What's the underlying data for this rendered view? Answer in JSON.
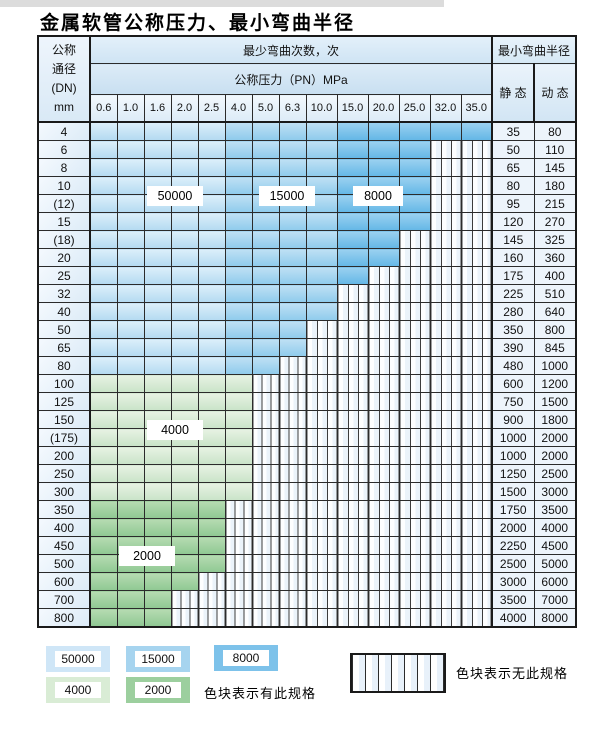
{
  "title": "金属软管公称压力、最小弯曲半径",
  "table": {
    "corner_lines": [
      "公称",
      "通径",
      "(DN)",
      "mm"
    ],
    "bend_cycles_header": "最少弯曲次数，次",
    "pressure_header": "公称压力（PN）MPa",
    "radius_header": "最小弯曲半径",
    "static_header": "静 态",
    "dynamic_header": "动 态",
    "pressures": [
      "0.6",
      "1.0",
      "1.6",
      "2.0",
      "2.5",
      "4.0",
      "5.0",
      "6.3",
      "10.0",
      "15.0",
      "20.0",
      "25.0",
      "32.0",
      "35.0"
    ],
    "blue_zones": [
      {
        "cycles": "50000",
        "from": 0,
        "to": 4
      },
      {
        "cycles": "15000",
        "from": 5,
        "to": 8
      },
      {
        "cycles": "8000",
        "from": 9,
        "to": 13
      }
    ],
    "rows": [
      {
        "dn": "4",
        "group": "blue",
        "colored_cols": 14,
        "static": "35",
        "dynamic": "80"
      },
      {
        "dn": "6",
        "group": "blue",
        "colored_cols": 12,
        "static": "50",
        "dynamic": "110"
      },
      {
        "dn": "8",
        "group": "blue",
        "colored_cols": 12,
        "static": "65",
        "dynamic": "145"
      },
      {
        "dn": "10",
        "group": "blue",
        "colored_cols": 12,
        "static": "80",
        "dynamic": "180"
      },
      {
        "dn": "(12)",
        "group": "blue",
        "colored_cols": 12,
        "static": "95",
        "dynamic": "215"
      },
      {
        "dn": "15",
        "group": "blue",
        "colored_cols": 12,
        "static": "120",
        "dynamic": "270"
      },
      {
        "dn": "(18)",
        "group": "blue",
        "colored_cols": 11,
        "static": "145",
        "dynamic": "325"
      },
      {
        "dn": "20",
        "group": "blue",
        "colored_cols": 11,
        "static": "160",
        "dynamic": "360"
      },
      {
        "dn": "25",
        "group": "blue",
        "colored_cols": 10,
        "static": "175",
        "dynamic": "400"
      },
      {
        "dn": "32",
        "group": "blue",
        "colored_cols": 9,
        "static": "225",
        "dynamic": "510"
      },
      {
        "dn": "40",
        "group": "blue",
        "colored_cols": 9,
        "static": "280",
        "dynamic": "640"
      },
      {
        "dn": "50",
        "group": "blue",
        "colored_cols": 8,
        "static": "350",
        "dynamic": "800"
      },
      {
        "dn": "65",
        "group": "blue",
        "colored_cols": 8,
        "static": "390",
        "dynamic": "845"
      },
      {
        "dn": "80",
        "group": "blue",
        "colored_cols": 7,
        "static": "480",
        "dynamic": "1000"
      },
      {
        "dn": "100",
        "group": "g4000",
        "colored_cols": 6,
        "static": "600",
        "dynamic": "1200"
      },
      {
        "dn": "125",
        "group": "g4000",
        "colored_cols": 6,
        "static": "750",
        "dynamic": "1500"
      },
      {
        "dn": "150",
        "group": "g4000",
        "colored_cols": 6,
        "static": "900",
        "dynamic": "1800"
      },
      {
        "dn": "(175)",
        "group": "g4000",
        "colored_cols": 6,
        "static": "1000",
        "dynamic": "2000"
      },
      {
        "dn": "200",
        "group": "g4000",
        "colored_cols": 6,
        "static": "1000",
        "dynamic": "2000"
      },
      {
        "dn": "250",
        "group": "g4000",
        "colored_cols": 6,
        "static": "1250",
        "dynamic": "2500"
      },
      {
        "dn": "300",
        "group": "g4000",
        "colored_cols": 6,
        "static": "1500",
        "dynamic": "3000"
      },
      {
        "dn": "350",
        "group": "g2000",
        "colored_cols": 5,
        "static": "1750",
        "dynamic": "3500"
      },
      {
        "dn": "400",
        "group": "g2000",
        "colored_cols": 5,
        "static": "2000",
        "dynamic": "4000"
      },
      {
        "dn": "450",
        "group": "g2000",
        "colored_cols": 5,
        "static": "2250",
        "dynamic": "4500"
      },
      {
        "dn": "500",
        "group": "g2000",
        "colored_cols": 5,
        "static": "2500",
        "dynamic": "5000"
      },
      {
        "dn": "600",
        "group": "g2000",
        "colored_cols": 4,
        "static": "3000",
        "dynamic": "6000"
      },
      {
        "dn": "700",
        "group": "g2000",
        "colored_cols": 3,
        "static": "3500",
        "dynamic": "7000"
      },
      {
        "dn": "800",
        "group": "g2000",
        "colored_cols": 3,
        "static": "4000",
        "dynamic": "8000"
      }
    ]
  },
  "overlays": [
    {
      "label": "50000"
    },
    {
      "label": "15000"
    },
    {
      "label": "8000"
    },
    {
      "label": "4000"
    },
    {
      "label": "2000"
    }
  ],
  "legend": {
    "items": [
      {
        "label": "50000",
        "color": "#cfe6f7"
      },
      {
        "label": "15000",
        "color": "#a6d4ef"
      },
      {
        "label": "8000",
        "color": "#7dc2ea"
      },
      {
        "label": "4000",
        "color": "#d9ecd5"
      },
      {
        "label": "2000",
        "color": "#9ccf9e"
      }
    ],
    "has_spec_note": "色块表示有此规格",
    "no_spec_note": "色块表示无此规格"
  },
  "colors": {
    "cycles_50000": "#cfe6f7",
    "cycles_15000": "#a6d4ef",
    "cycles_8000": "#7dc2ea",
    "cycles_4000": "#d9ecd5",
    "cycles_2000": "#9ccf9e",
    "table_border": "#1a1a1a",
    "header_bg": "#ddecf8"
  }
}
